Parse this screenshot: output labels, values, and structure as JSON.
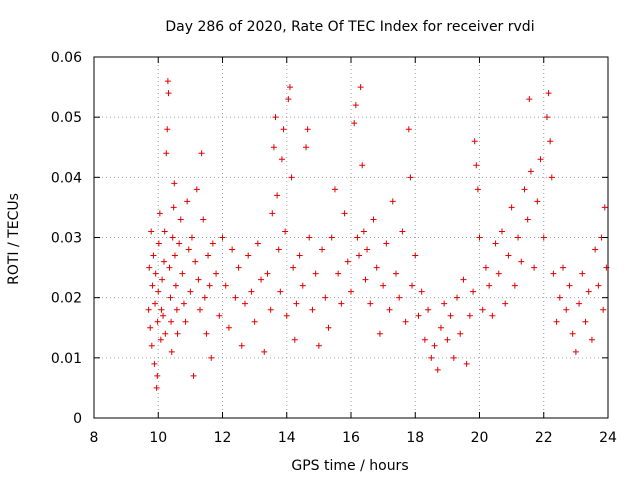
{
  "chart_data": {
    "type": "scatter",
    "title": "Day 286 of 2020, Rate Of TEC Index for receiver rvdi",
    "xlabel": "GPS time / hours",
    "ylabel": "ROTI / TECUs",
    "xlim": [
      8,
      24
    ],
    "ylim": [
      0,
      0.06
    ],
    "xticks": [
      "8",
      "10",
      "12",
      "14",
      "16",
      "18",
      "20",
      "22",
      "24"
    ],
    "yticks": [
      "0",
      "0.01",
      "0.02",
      "0.03",
      "0.04",
      "0.05",
      "0.06"
    ],
    "grid": true,
    "marker": "plus",
    "color": "#e00000",
    "series": [
      {
        "points": [
          [
            9.7,
            0.018
          ],
          [
            9.72,
            0.025
          ],
          [
            9.75,
            0.015
          ],
          [
            9.78,
            0.031
          ],
          [
            9.8,
            0.012
          ],
          [
            9.82,
            0.022
          ],
          [
            9.85,
            0.027
          ],
          [
            9.88,
            0.009
          ],
          [
            9.9,
            0.019
          ],
          [
            9.92,
            0.024
          ],
          [
            9.95,
            0.005
          ],
          [
            9.97,
            0.007
          ],
          [
            9.98,
            0.016
          ],
          [
            10.0,
            0.021
          ],
          [
            10.02,
            0.029
          ],
          [
            10.05,
            0.034
          ],
          [
            10.08,
            0.013
          ],
          [
            10.1,
            0.018
          ],
          [
            10.12,
            0.023
          ],
          [
            10.15,
            0.017
          ],
          [
            10.18,
            0.026
          ],
          [
            10.2,
            0.031
          ],
          [
            10.22,
            0.014
          ],
          [
            10.25,
            0.044
          ],
          [
            10.28,
            0.048
          ],
          [
            10.3,
            0.056
          ],
          [
            10.32,
            0.054
          ],
          [
            10.35,
            0.025
          ],
          [
            10.38,
            0.02
          ],
          [
            10.4,
            0.016
          ],
          [
            10.42,
            0.011
          ],
          [
            10.45,
            0.03
          ],
          [
            10.48,
            0.035
          ],
          [
            10.5,
            0.039
          ],
          [
            10.52,
            0.027
          ],
          [
            10.55,
            0.022
          ],
          [
            10.58,
            0.018
          ],
          [
            10.6,
            0.014
          ],
          [
            10.65,
            0.029
          ],
          [
            10.7,
            0.033
          ],
          [
            10.75,
            0.024
          ],
          [
            10.8,
            0.019
          ],
          [
            10.85,
            0.016
          ],
          [
            10.9,
            0.036
          ],
          [
            10.95,
            0.028
          ],
          [
            11.0,
            0.021
          ],
          [
            11.05,
            0.03
          ],
          [
            11.1,
            0.007
          ],
          [
            11.15,
            0.026
          ],
          [
            11.2,
            0.038
          ],
          [
            11.25,
            0.023
          ],
          [
            11.3,
            0.018
          ],
          [
            11.35,
            0.044
          ],
          [
            11.4,
            0.033
          ],
          [
            11.45,
            0.02
          ],
          [
            11.5,
            0.014
          ],
          [
            11.55,
            0.027
          ],
          [
            11.6,
            0.022
          ],
          [
            11.65,
            0.01
          ],
          [
            11.7,
            0.029
          ],
          [
            11.8,
            0.024
          ],
          [
            11.9,
            0.017
          ],
          [
            12.0,
            0.03
          ],
          [
            12.1,
            0.022
          ],
          [
            12.2,
            0.015
          ],
          [
            12.3,
            0.028
          ],
          [
            12.4,
            0.02
          ],
          [
            12.5,
            0.025
          ],
          [
            12.6,
            0.012
          ],
          [
            12.7,
            0.019
          ],
          [
            12.8,
            0.027
          ],
          [
            12.9,
            0.021
          ],
          [
            13.0,
            0.016
          ],
          [
            13.1,
            0.029
          ],
          [
            13.2,
            0.023
          ],
          [
            13.3,
            0.011
          ],
          [
            13.4,
            0.024
          ],
          [
            13.5,
            0.018
          ],
          [
            13.55,
            0.034
          ],
          [
            13.6,
            0.045
          ],
          [
            13.65,
            0.05
          ],
          [
            13.7,
            0.037
          ],
          [
            13.75,
            0.028
          ],
          [
            13.8,
            0.021
          ],
          [
            13.85,
            0.043
          ],
          [
            13.9,
            0.048
          ],
          [
            13.95,
            0.031
          ],
          [
            14.0,
            0.017
          ],
          [
            14.05,
            0.053
          ],
          [
            14.1,
            0.055
          ],
          [
            14.15,
            0.04
          ],
          [
            14.2,
            0.025
          ],
          [
            14.25,
            0.013
          ],
          [
            14.3,
            0.019
          ],
          [
            14.4,
            0.027
          ],
          [
            14.5,
            0.022
          ],
          [
            14.6,
            0.045
          ],
          [
            14.65,
            0.048
          ],
          [
            14.7,
            0.03
          ],
          [
            14.8,
            0.018
          ],
          [
            14.9,
            0.024
          ],
          [
            15.0,
            0.012
          ],
          [
            15.1,
            0.028
          ],
          [
            15.2,
            0.02
          ],
          [
            15.3,
            0.015
          ],
          [
            15.4,
            0.03
          ],
          [
            15.5,
            0.038
          ],
          [
            15.6,
            0.024
          ],
          [
            15.7,
            0.019
          ],
          [
            15.8,
            0.034
          ],
          [
            15.9,
            0.026
          ],
          [
            16.0,
            0.021
          ],
          [
            16.1,
            0.049
          ],
          [
            16.15,
            0.052
          ],
          [
            16.2,
            0.03
          ],
          [
            16.25,
            0.027
          ],
          [
            16.3,
            0.055
          ],
          [
            16.35,
            0.042
          ],
          [
            16.4,
            0.031
          ],
          [
            16.45,
            0.023
          ],
          [
            16.5,
            0.028
          ],
          [
            16.6,
            0.019
          ],
          [
            16.7,
            0.033
          ],
          [
            16.8,
            0.025
          ],
          [
            16.9,
            0.014
          ],
          [
            17.0,
            0.022
          ],
          [
            17.1,
            0.029
          ],
          [
            17.2,
            0.018
          ],
          [
            17.3,
            0.036
          ],
          [
            17.4,
            0.024
          ],
          [
            17.5,
            0.02
          ],
          [
            17.6,
            0.031
          ],
          [
            17.7,
            0.016
          ],
          [
            17.8,
            0.048
          ],
          [
            17.85,
            0.04
          ],
          [
            17.9,
            0.022
          ],
          [
            18.0,
            0.027
          ],
          [
            18.1,
            0.017
          ],
          [
            18.2,
            0.021
          ],
          [
            18.3,
            0.013
          ],
          [
            18.4,
            0.018
          ],
          [
            18.5,
            0.01
          ],
          [
            18.6,
            0.012
          ],
          [
            18.7,
            0.008
          ],
          [
            18.8,
            0.015
          ],
          [
            18.9,
            0.019
          ],
          [
            19.0,
            0.013
          ],
          [
            19.1,
            0.017
          ],
          [
            19.2,
            0.01
          ],
          [
            19.3,
            0.02
          ],
          [
            19.4,
            0.014
          ],
          [
            19.5,
            0.023
          ],
          [
            19.6,
            0.009
          ],
          [
            19.7,
            0.017
          ],
          [
            19.8,
            0.021
          ],
          [
            19.85,
            0.046
          ],
          [
            19.9,
            0.042
          ],
          [
            19.95,
            0.038
          ],
          [
            20.0,
            0.03
          ],
          [
            20.1,
            0.018
          ],
          [
            20.2,
            0.025
          ],
          [
            20.3,
            0.022
          ],
          [
            20.4,
            0.017
          ],
          [
            20.5,
            0.029
          ],
          [
            20.6,
            0.024
          ],
          [
            20.7,
            0.031
          ],
          [
            20.8,
            0.019
          ],
          [
            20.9,
            0.027
          ],
          [
            21.0,
            0.035
          ],
          [
            21.1,
            0.022
          ],
          [
            21.2,
            0.03
          ],
          [
            21.3,
            0.026
          ],
          [
            21.4,
            0.038
          ],
          [
            21.5,
            0.033
          ],
          [
            21.55,
            0.053
          ],
          [
            21.6,
            0.041
          ],
          [
            21.7,
            0.025
          ],
          [
            21.8,
            0.036
          ],
          [
            21.9,
            0.043
          ],
          [
            22.0,
            0.03
          ],
          [
            22.1,
            0.05
          ],
          [
            22.15,
            0.054
          ],
          [
            22.2,
            0.046
          ],
          [
            22.25,
            0.04
          ],
          [
            22.3,
            0.024
          ],
          [
            22.4,
            0.016
          ],
          [
            22.5,
            0.02
          ],
          [
            22.6,
            0.025
          ],
          [
            22.7,
            0.018
          ],
          [
            22.8,
            0.022
          ],
          [
            22.9,
            0.014
          ],
          [
            23.0,
            0.011
          ],
          [
            23.1,
            0.019
          ],
          [
            23.2,
            0.024
          ],
          [
            23.3,
            0.016
          ],
          [
            23.4,
            0.021
          ],
          [
            23.5,
            0.013
          ],
          [
            23.6,
            0.028
          ],
          [
            23.7,
            0.022
          ],
          [
            23.8,
            0.03
          ],
          [
            23.85,
            0.018
          ],
          [
            23.9,
            0.035
          ],
          [
            23.95,
            0.025
          ]
        ]
      }
    ]
  }
}
